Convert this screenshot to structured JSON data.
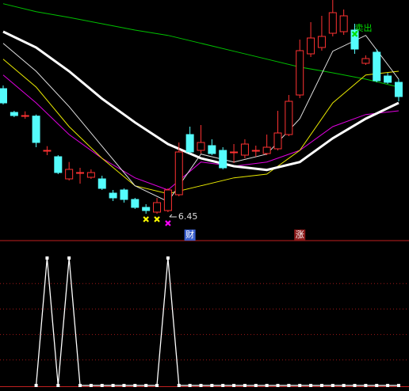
{
  "chart_data": [
    {
      "type": "candlestick",
      "ylim": [
        6.0,
        10.5
      ],
      "up_color": "#ff3232",
      "down_color": "#54fcfc",
      "open": [
        8.82,
        8.37,
        8.31,
        8.3,
        7.65,
        7.53,
        7.11,
        7.23,
        7.14,
        7.11,
        6.84,
        6.9,
        6.72,
        6.57,
        6.48,
        6.51,
        6.81,
        7.95,
        7.65,
        7.74,
        7.65,
        7.62,
        7.56,
        7.65,
        7.59,
        7.68,
        7.95,
        8.7,
        9.48,
        9.6,
        9.87,
        9.9,
        9.93,
        9.3,
        9.51,
        9.06,
        8.94
      ],
      "close": [
        8.55,
        8.31,
        8.31,
        7.8,
        7.65,
        7.23,
        7.29,
        7.23,
        7.23,
        6.93,
        6.75,
        6.72,
        6.57,
        6.51,
        6.66,
        6.9,
        7.62,
        7.62,
        7.8,
        7.59,
        7.32,
        7.62,
        7.77,
        7.65,
        7.71,
        7.98,
        8.58,
        9.54,
        9.78,
        9.81,
        10.26,
        10.2,
        9.57,
        9.39,
        8.97,
        8.94,
        8.67
      ],
      "high": [
        8.88,
        8.4,
        8.39,
        8.33,
        7.73,
        7.56,
        7.43,
        7.32,
        7.29,
        7.17,
        6.9,
        6.93,
        6.75,
        6.63,
        6.75,
        6.93,
        7.8,
        8.1,
        8.13,
        7.86,
        7.71,
        7.77,
        7.86,
        7.74,
        7.95,
        8.4,
        8.7,
        9.75,
        10.08,
        10.2,
        10.5,
        10.32,
        10.05,
        9.45,
        9.57,
        9.12,
        9.0
      ],
      "low": [
        8.52,
        8.28,
        8.25,
        7.71,
        7.56,
        7.2,
        7.08,
        7.02,
        7.11,
        6.9,
        6.69,
        6.66,
        6.54,
        6.45,
        6.45,
        6.48,
        6.78,
        7.59,
        7.59,
        7.56,
        7.29,
        7.41,
        7.5,
        7.53,
        7.56,
        7.65,
        7.92,
        8.64,
        9.42,
        9.54,
        9.81,
        9.84,
        9.48,
        9.27,
        8.94,
        8.91,
        8.58
      ],
      "series": [
        {
          "color": "#00c000",
          "width": 1,
          "x": [
            0,
            3,
            6,
            9,
            12,
            15,
            18,
            21,
            24,
            27,
            30,
            33,
            36
          ],
          "values": [
            10.43,
            10.28,
            10.17,
            10.05,
            9.93,
            9.83,
            9.68,
            9.53,
            9.38,
            9.23,
            9.12,
            9.0,
            8.85
          ]
        },
        {
          "color": "#e000e0",
          "width": 1,
          "x": [
            0,
            3,
            6,
            9,
            12,
            15,
            18,
            21,
            24,
            27,
            30,
            33,
            36
          ],
          "values": [
            9.08,
            8.55,
            7.95,
            7.5,
            7.13,
            6.9,
            7.43,
            7.35,
            7.43,
            7.65,
            8.1,
            8.33,
            8.4
          ]
        },
        {
          "color": "#e8e800",
          "width": 1,
          "x": [
            0,
            3,
            6,
            9,
            12,
            15,
            18,
            21,
            24,
            27,
            30,
            33,
            36
          ],
          "values": [
            9.38,
            8.85,
            8.1,
            7.5,
            6.98,
            6.83,
            6.98,
            7.13,
            7.2,
            7.65,
            8.55,
            9.08,
            9.15
          ]
        },
        {
          "color": "#e0e0e0",
          "width": 1,
          "x": [
            0,
            3,
            6,
            9,
            12,
            15,
            18,
            21,
            24,
            27,
            30,
            33,
            36
          ],
          "values": [
            9.68,
            9.15,
            8.48,
            7.73,
            6.98,
            6.68,
            7.58,
            7.43,
            7.58,
            8.25,
            9.53,
            9.83,
            9.0
          ]
        },
        {
          "color": "#ffffff",
          "width": 3,
          "x": [
            0,
            3,
            6,
            9,
            12,
            15,
            18,
            21,
            24,
            27,
            30,
            33,
            36
          ],
          "values": [
            9.9,
            9.6,
            9.15,
            8.63,
            8.18,
            7.77,
            7.5,
            7.35,
            7.28,
            7.43,
            7.88,
            8.25,
            8.55
          ]
        }
      ],
      "markers": [
        {
          "index": 13,
          "color": "#ffff00"
        },
        {
          "index": 14,
          "color": "#ffff00"
        },
        {
          "index": 15,
          "color": "#ff00ff"
        }
      ],
      "signal": {
        "index": 32,
        "text": "卖出",
        "color": "#00e000"
      },
      "low_annotation": {
        "index": 15,
        "value": 6.45
      },
      "flags": [
        {
          "index": 17,
          "text": "财",
          "color": "#3a5fcd"
        },
        {
          "index": 27,
          "text": "涨",
          "color": "#8b1a1a"
        }
      ]
    },
    {
      "type": "line",
      "ylim": [
        0,
        1
      ],
      "yticks": [
        0.2,
        0.4,
        0.6,
        0.8
      ],
      "color": "#ffffff",
      "values": [
        null,
        null,
        null,
        0,
        1,
        0,
        1,
        0,
        0,
        0,
        0,
        0,
        0,
        0,
        0,
        1,
        0,
        0,
        0,
        0,
        0,
        0,
        0,
        0,
        0,
        0,
        0,
        0,
        0,
        0,
        0,
        0,
        0,
        0,
        0,
        0,
        0
      ]
    }
  ]
}
